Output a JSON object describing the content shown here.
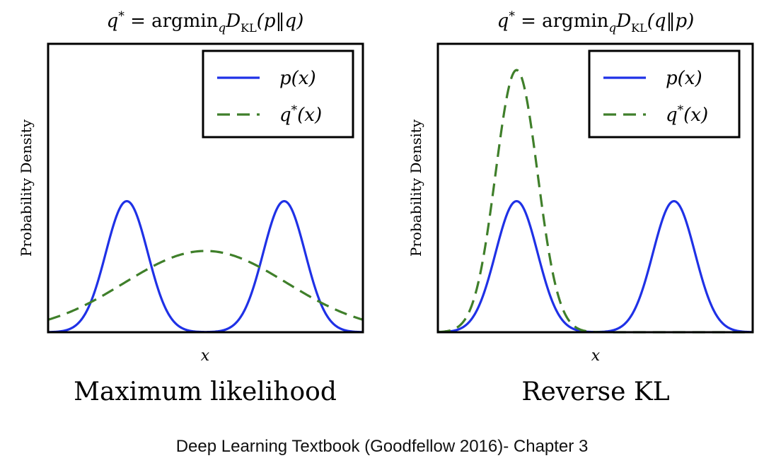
{
  "colors": {
    "p": "#1f31e6",
    "q": "#3f7f2a",
    "frame": "#000000"
  },
  "caption": "Deep Learning Textbook (Goodfellow 2016)- Chapter 3",
  "chart_data": [
    {
      "type": "line",
      "title": "q* = argmin_q D_KL(p||q)",
      "title_parts": {
        "lhs": "q",
        "star": "*",
        "eq": " = argmin",
        "sub": "q",
        "D": "D",
        "Dsub": "KL",
        "args": "(p‖q)"
      },
      "subtitle": "Maximum likelihood",
      "xlabel": "x",
      "ylabel": "Probability Density",
      "xlim": [
        -6,
        6
      ],
      "ylim": [
        0,
        1.1
      ],
      "grid": false,
      "legend_position": "top-right",
      "series": [
        {
          "name": "p(x)",
          "key": "p",
          "style": "solid",
          "color": "#1f31e6",
          "components": [
            {
              "mean": -3,
              "sd": 0.8,
              "peak": 0.5
            },
            {
              "mean": 3,
              "sd": 0.8,
              "peak": 0.5
            }
          ]
        },
        {
          "name": "q*(x)",
          "key": "q",
          "style": "dashed",
          "color": "#3f7f2a",
          "components": [
            {
              "mean": 0,
              "sd": 3.1,
              "peak": 0.31
            }
          ]
        }
      ]
    },
    {
      "type": "line",
      "title": "q* = argmin_q D_KL(q||p)",
      "title_parts": {
        "lhs": "q",
        "star": "*",
        "eq": " = argmin",
        "sub": "q",
        "D": "D",
        "Dsub": "KL",
        "args": "(q‖p)"
      },
      "subtitle": "Reverse KL",
      "xlabel": "x",
      "ylabel": "Probability Density",
      "xlim": [
        -6,
        6
      ],
      "ylim": [
        0,
        1.1
      ],
      "grid": false,
      "legend_position": "top-right",
      "series": [
        {
          "name": "p(x)",
          "key": "p",
          "style": "solid",
          "color": "#1f31e6",
          "components": [
            {
              "mean": -3,
              "sd": 0.8,
              "peak": 0.5
            },
            {
              "mean": 3,
              "sd": 0.8,
              "peak": 0.5
            }
          ]
        },
        {
          "name": "q*(x)",
          "key": "q",
          "style": "dashed",
          "color": "#3f7f2a",
          "components": [
            {
              "mean": -3,
              "sd": 0.8,
              "peak": 1.0
            }
          ]
        }
      ]
    }
  ]
}
